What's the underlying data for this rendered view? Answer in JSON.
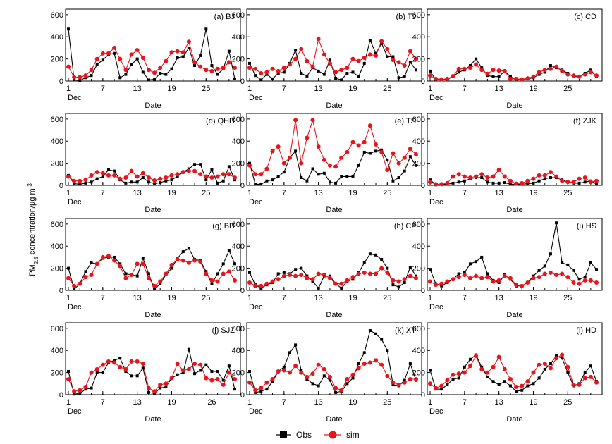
{
  "ylabel_main": "PM",
  "ylabel_sub": "2.5",
  "ylabel_rest": " concentration/μg m",
  "ylabel_sup": "-3",
  "legend": {
    "obs": "Obs",
    "sim": "sim"
  },
  "colors": {
    "obs": "#000000",
    "sim": "#e8141c"
  },
  "chart_data": [
    {
      "type": "line",
      "title": "(a)  BJ",
      "xlabel": "Date",
      "month_label": "Dec",
      "x_ticks": [
        "1",
        "7",
        "13",
        "19",
        "25"
      ],
      "ylim": [
        0,
        650
      ],
      "y_ticks": [
        0,
        200,
        400,
        600
      ],
      "obs": [
        470,
        10,
        5,
        30,
        50,
        150,
        190,
        240,
        250,
        30,
        60,
        150,
        200,
        80,
        10,
        15,
        70,
        60,
        110,
        210,
        220,
        300,
        140,
        230,
        470,
        140,
        60,
        110,
        270,
        20
      ],
      "sim": [
        130,
        35,
        35,
        50,
        100,
        200,
        250,
        250,
        300,
        200,
        100,
        240,
        280,
        210,
        100,
        75,
        120,
        180,
        260,
        270,
        260,
        355,
        170,
        130,
        100,
        90,
        110,
        120,
        170,
        120
      ]
    },
    {
      "type": "line",
      "title": "(b)  TJ",
      "xlabel": "Date",
      "month_label": "Dec",
      "x_ticks": [
        "1",
        "7",
        "13",
        "19",
        "25"
      ],
      "ylim": [
        0,
        650
      ],
      "y_ticks": [
        0,
        200,
        400,
        600
      ],
      "obs": [
        160,
        50,
        10,
        60,
        20,
        70,
        80,
        160,
        280,
        70,
        45,
        120,
        90,
        60,
        190,
        25,
        10,
        70,
        80,
        40,
        160,
        370,
        250,
        340,
        220,
        220,
        30,
        40,
        170,
        100
      ],
      "sim": [
        120,
        110,
        70,
        80,
        110,
        90,
        120,
        150,
        200,
        290,
        180,
        130,
        380,
        240,
        160,
        80,
        100,
        120,
        200,
        180,
        210,
        240,
        230,
        360,
        290,
        190,
        170,
        140,
        270,
        200
      ]
    },
    {
      "type": "line",
      "title": "(c)  CD",
      "xlabel": "Date",
      "month_label": "Dec",
      "x_ticks": [
        "1",
        "7",
        "13",
        "19",
        "25"
      ],
      "ylim": [
        0,
        650
      ],
      "y_ticks": [
        0,
        200,
        400,
        600
      ],
      "obs": [
        90,
        10,
        15,
        15,
        40,
        80,
        100,
        140,
        200,
        120,
        50,
        40,
        40,
        90,
        40,
        15,
        15,
        20,
        30,
        60,
        80,
        140,
        120,
        100,
        70,
        40,
        40,
        70,
        100,
        40
      ],
      "sim": [
        50,
        20,
        15,
        20,
        45,
        110,
        110,
        120,
        150,
        100,
        65,
        100,
        95,
        90,
        20,
        20,
        15,
        25,
        40,
        80,
        100,
        110,
        130,
        90,
        60,
        50,
        40,
        60,
        80,
        50
      ]
    },
    {
      "type": "line",
      "title": "(d)  QHD",
      "xlabel": "Date",
      "month_label": "Dec",
      "x_ticks": [
        "1",
        "7",
        "13",
        "19",
        "25"
      ],
      "ylim": [
        0,
        650
      ],
      "y_ticks": [
        0,
        200,
        400,
        600
      ],
      "obs": [
        90,
        15,
        10,
        20,
        30,
        60,
        80,
        140,
        130,
        50,
        20,
        30,
        30,
        70,
        30,
        15,
        25,
        40,
        50,
        80,
        120,
        150,
        190,
        190,
        50,
        140,
        20,
        40,
        170,
        50
      ],
      "sim": [
        80,
        40,
        40,
        50,
        90,
        120,
        110,
        90,
        90,
        60,
        70,
        130,
        80,
        110,
        70,
        45,
        60,
        70,
        90,
        100,
        120,
        130,
        130,
        100,
        80,
        70,
        80,
        100,
        100,
        70
      ]
    },
    {
      "type": "line",
      "title": "(e)  TS",
      "xlabel": "Date",
      "month_label": "Dec",
      "x_ticks": [
        "1",
        "7",
        "13",
        "19",
        "25"
      ],
      "ylim": [
        0,
        650
      ],
      "y_ticks": [
        0,
        200,
        400,
        600
      ],
      "obs": [
        200,
        10,
        10,
        40,
        50,
        80,
        120,
        250,
        310,
        70,
        40,
        150,
        100,
        110,
        30,
        20,
        80,
        80,
        80,
        180,
        300,
        290,
        310,
        320,
        230,
        40,
        70,
        130,
        260,
        180
      ],
      "sim": [
        180,
        100,
        100,
        150,
        310,
        350,
        200,
        250,
        590,
        200,
        430,
        590,
        350,
        230,
        180,
        170,
        250,
        300,
        390,
        360,
        390,
        540,
        370,
        300,
        140,
        290,
        200,
        250,
        330,
        280
      ]
    },
    {
      "type": "line",
      "title": "(f)  ZJK",
      "xlabel": "Date",
      "month_label": "Dec",
      "x_ticks": [
        "1",
        "7",
        "13",
        "19",
        "25"
      ],
      "ylim": [
        0,
        650
      ],
      "y_ticks": [
        0,
        200,
        400,
        600
      ],
      "obs": [
        50,
        5,
        10,
        10,
        20,
        30,
        40,
        60,
        70,
        70,
        30,
        20,
        20,
        25,
        10,
        10,
        10,
        15,
        20,
        40,
        60,
        70,
        70,
        50,
        30,
        20,
        20,
        30,
        40,
        10
      ],
      "sim": [
        30,
        10,
        10,
        20,
        80,
        100,
        80,
        70,
        80,
        100,
        70,
        80,
        140,
        80,
        40,
        15,
        20,
        40,
        60,
        90,
        90,
        120,
        80,
        40,
        30,
        30,
        60,
        70,
        30,
        40
      ]
    },
    {
      "type": "line",
      "title": "(g)  BD",
      "xlabel": "Date",
      "month_label": "Dec",
      "x_ticks": [
        "1",
        "7",
        "13",
        "19",
        "25"
      ],
      "ylim": [
        0,
        650
      ],
      "y_ticks": [
        0,
        200,
        400,
        600
      ],
      "obs": [
        200,
        10,
        60,
        170,
        250,
        240,
        290,
        300,
        300,
        240,
        150,
        140,
        130,
        290,
        150,
        10,
        60,
        140,
        200,
        290,
        350,
        380,
        280,
        270,
        170,
        60,
        150,
        240,
        360,
        240
      ],
      "sim": [
        110,
        40,
        60,
        120,
        140,
        240,
        300,
        310,
        270,
        220,
        110,
        140,
        240,
        240,
        110,
        40,
        80,
        150,
        230,
        280,
        270,
        250,
        270,
        260,
        150,
        90,
        80,
        150,
        170,
        90
      ]
    },
    {
      "type": "line",
      "title": "(h)  CZ",
      "xlabel": "Date",
      "month_label": "Dec",
      "x_ticks": [
        "1",
        "7",
        "13",
        "19",
        "25"
      ],
      "ylim": [
        0,
        650
      ],
      "y_ticks": [
        0,
        200,
        400,
        600
      ],
      "obs": [
        160,
        50,
        20,
        50,
        70,
        150,
        160,
        150,
        190,
        200,
        130,
        80,
        20,
        130,
        130,
        60,
        20,
        80,
        100,
        160,
        250,
        330,
        320,
        280,
        200,
        50,
        30,
        70,
        210,
        130
      ],
      "sim": [
        70,
        40,
        40,
        60,
        80,
        100,
        130,
        140,
        130,
        140,
        110,
        100,
        150,
        140,
        110,
        60,
        60,
        90,
        120,
        150,
        160,
        150,
        150,
        200,
        160,
        90,
        80,
        100,
        130,
        110
      ]
    },
    {
      "type": "line",
      "title": "(i)  HS",
      "xlabel": "Date",
      "month_label": "Dec",
      "x_ticks": [
        "1",
        "7",
        "13",
        "19",
        "25"
      ],
      "ylim": [
        0,
        650
      ],
      "y_ticks": [
        0,
        200,
        400,
        600
      ],
      "obs": [
        190,
        60,
        40,
        70,
        100,
        150,
        160,
        240,
        260,
        300,
        150,
        90,
        70,
        140,
        100,
        40,
        40,
        70,
        130,
        180,
        220,
        330,
        610,
        250,
        230,
        180,
        100,
        120,
        250,
        190
      ],
      "sim": [
        80,
        50,
        60,
        80,
        100,
        120,
        140,
        110,
        130,
        110,
        120,
        80,
        90,
        130,
        110,
        50,
        40,
        70,
        110,
        120,
        150,
        160,
        140,
        150,
        120,
        70,
        60,
        90,
        90,
        70
      ]
    },
    {
      "type": "line",
      "title": "(j)  SJZ",
      "xlabel": "Date",
      "month_label": "Dec",
      "x_ticks": [
        "1",
        "7",
        "13",
        "19",
        "26"
      ],
      "ylim": [
        0,
        650
      ],
      "y_ticks": [
        0,
        200,
        400,
        600
      ],
      "obs": [
        210,
        5,
        10,
        50,
        60,
        200,
        200,
        290,
        310,
        330,
        210,
        170,
        170,
        240,
        20,
        10,
        60,
        70,
        150,
        180,
        200,
        410,
        190,
        220,
        270,
        210,
        210,
        130,
        260,
        50
      ],
      "sim": [
        140,
        30,
        40,
        70,
        200,
        230,
        270,
        300,
        290,
        250,
        230,
        300,
        300,
        280,
        60,
        30,
        90,
        100,
        150,
        280,
        220,
        230,
        280,
        270,
        150,
        130,
        140,
        90,
        200,
        140
      ]
    },
    {
      "type": "line",
      "title": "(k)  XT",
      "xlabel": "Date",
      "month_label": "Dec",
      "x_ticks": [
        "1",
        "7",
        "13",
        "19",
        "25"
      ],
      "ylim": [
        0,
        650
      ],
      "y_ticks": [
        0,
        200,
        400,
        600
      ],
      "obs": [
        210,
        20,
        30,
        50,
        120,
        210,
        250,
        380,
        450,
        220,
        140,
        100,
        80,
        170,
        130,
        20,
        30,
        100,
        150,
        280,
        380,
        580,
        550,
        500,
        400,
        90,
        80,
        130,
        280,
        130
      ],
      "sim": [
        110,
        40,
        60,
        110,
        140,
        210,
        220,
        200,
        260,
        200,
        160,
        190,
        270,
        230,
        160,
        60,
        40,
        140,
        180,
        240,
        280,
        290,
        310,
        270,
        170,
        110,
        90,
        110,
        140,
        140
      ]
    },
    {
      "type": "line",
      "title": "(l)  HD",
      "xlabel": "Date",
      "month_label": "Dec",
      "x_ticks": [
        "1",
        "7",
        "13",
        "19",
        "25"
      ],
      "ylim": [
        0,
        650
      ],
      "y_ticks": [
        0,
        200,
        400,
        600
      ],
      "obs": [
        220,
        50,
        50,
        90,
        140,
        150,
        250,
        320,
        360,
        250,
        160,
        120,
        90,
        120,
        80,
        30,
        40,
        80,
        100,
        150,
        230,
        280,
        350,
        330,
        200,
        80,
        100,
        200,
        260,
        120
      ],
      "sim": [
        100,
        60,
        80,
        130,
        180,
        190,
        200,
        260,
        350,
        230,
        200,
        250,
        340,
        230,
        140,
        70,
        80,
        120,
        200,
        270,
        280,
        240,
        330,
        360,
        250,
        90,
        90,
        150,
        160,
        110
      ]
    }
  ]
}
